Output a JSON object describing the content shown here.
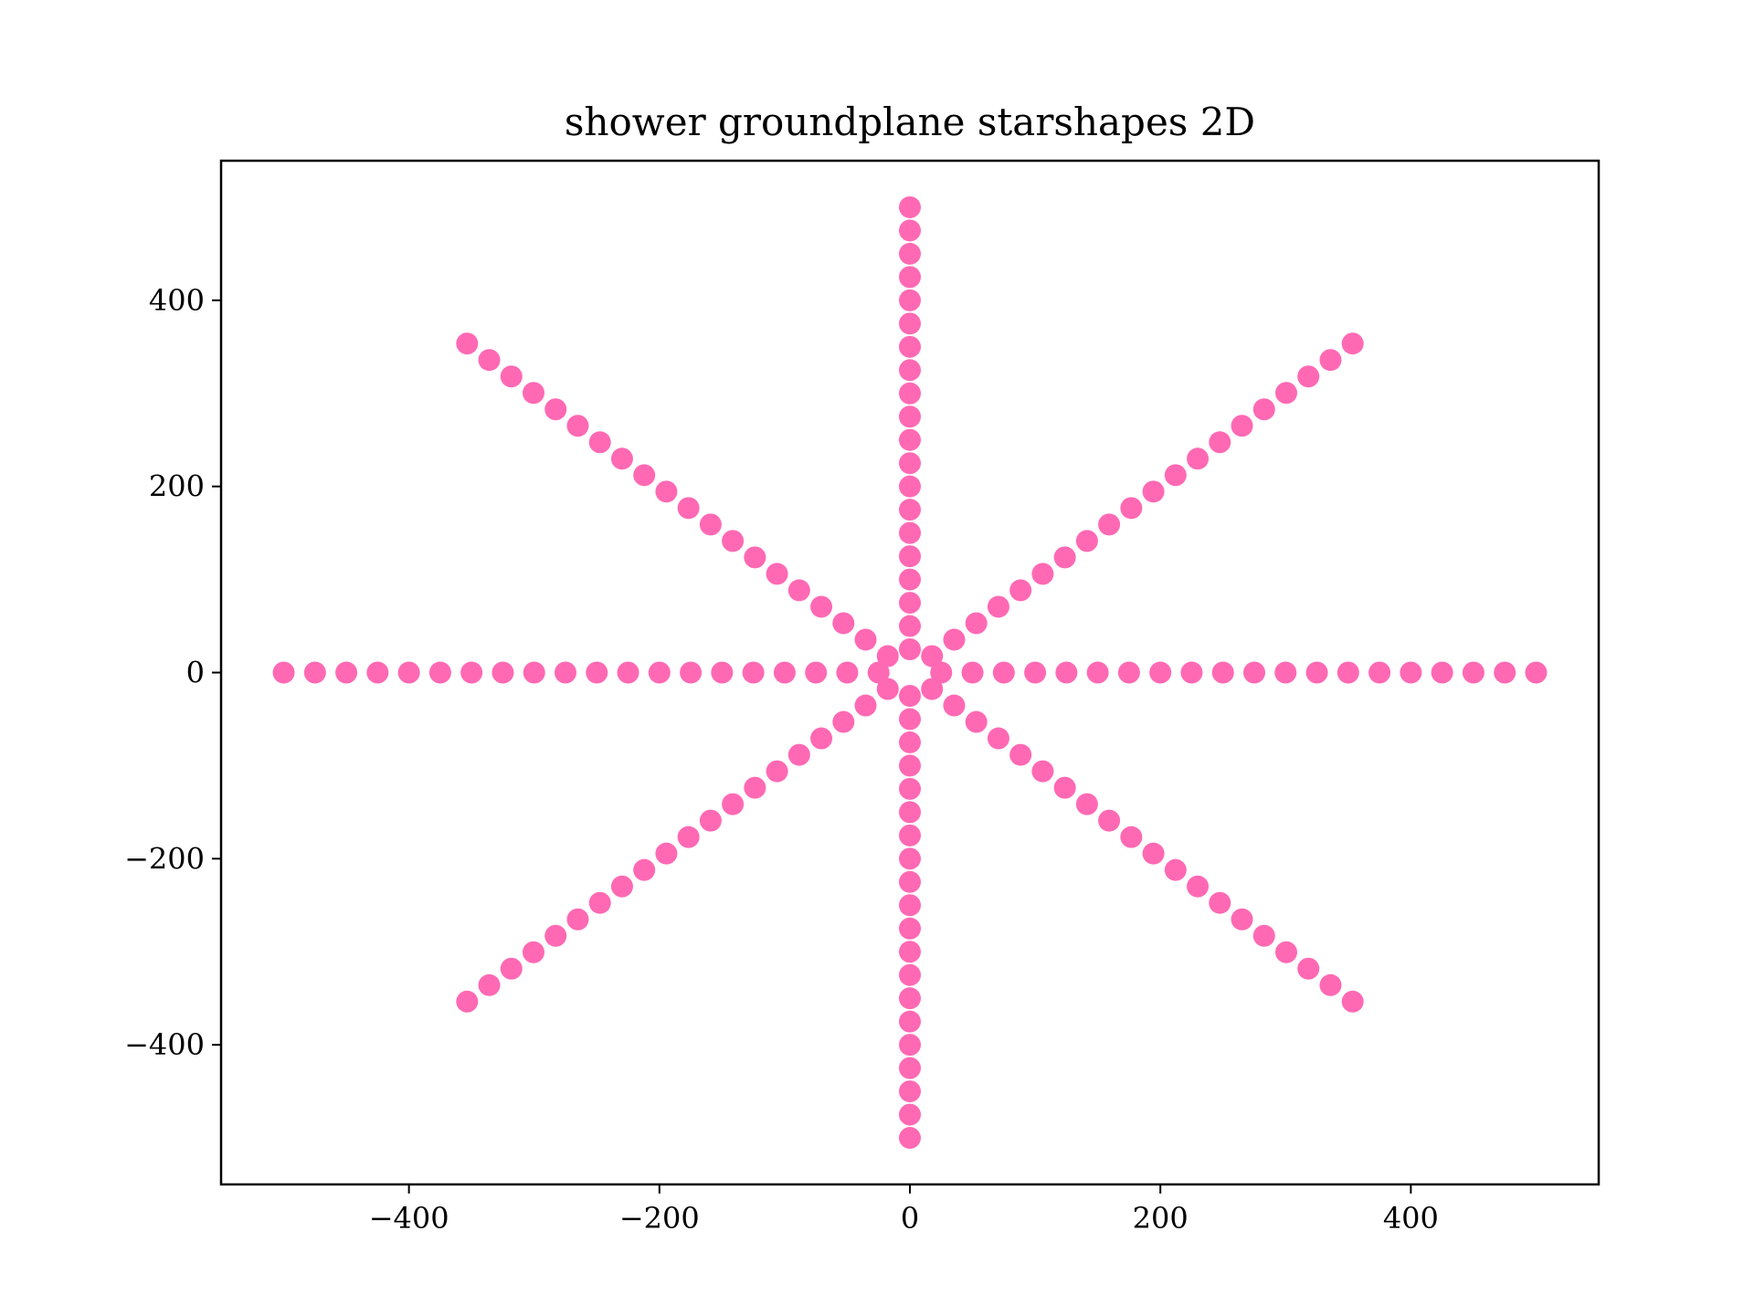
{
  "chart_data": {
    "type": "scatter",
    "title": "shower groundplane starshapes 2D",
    "xlabel": "",
    "ylabel": "",
    "xlim": [
      -550,
      550
    ],
    "ylim": [
      -550,
      550
    ],
    "xticks": [
      -400,
      -200,
      0,
      200,
      400
    ],
    "yticks": [
      -400,
      -200,
      0,
      200,
      400
    ],
    "xtick_labels": [
      "−400",
      "−200",
      "0",
      "200",
      "400"
    ],
    "ytick_labels": [
      "−400",
      "−200",
      "0",
      "200",
      "400"
    ],
    "grid": false,
    "marker_color": "#ff69b4",
    "arms": [
      {
        "angle_deg": 0,
        "radii": [
          25,
          50,
          75,
          100,
          125,
          150,
          175,
          200,
          225,
          250,
          275,
          300,
          325,
          350,
          375,
          400,
          425,
          450,
          475,
          500
        ]
      },
      {
        "angle_deg": 45,
        "radii": [
          25,
          50,
          75,
          100,
          125,
          150,
          175,
          200,
          225,
          250,
          275,
          300,
          325,
          350,
          375,
          400,
          425,
          450,
          475,
          500
        ]
      },
      {
        "angle_deg": 90,
        "radii": [
          25,
          50,
          75,
          100,
          125,
          150,
          175,
          200,
          225,
          250,
          275,
          300,
          325,
          350,
          375,
          400,
          425,
          450,
          475,
          500
        ]
      },
      {
        "angle_deg": 135,
        "radii": [
          25,
          50,
          75,
          100,
          125,
          150,
          175,
          200,
          225,
          250,
          275,
          300,
          325,
          350,
          375,
          400,
          425,
          450,
          475,
          500
        ]
      },
      {
        "angle_deg": 180,
        "radii": [
          25,
          50,
          75,
          100,
          125,
          150,
          175,
          200,
          225,
          250,
          275,
          300,
          325,
          350,
          375,
          400,
          425,
          450,
          475,
          500
        ]
      },
      {
        "angle_deg": 225,
        "radii": [
          25,
          50,
          75,
          100,
          125,
          150,
          175,
          200,
          225,
          250,
          275,
          300,
          325,
          350,
          375,
          400,
          425,
          450,
          475,
          500
        ]
      },
      {
        "angle_deg": 270,
        "radii": [
          25,
          50,
          75,
          100,
          125,
          150,
          175,
          200,
          225,
          250,
          275,
          300,
          325,
          350,
          375,
          400,
          425,
          450,
          475,
          500
        ]
      },
      {
        "angle_deg": 315,
        "radii": [
          25,
          50,
          75,
          100,
          125,
          150,
          175,
          200,
          225,
          250,
          275,
          300,
          325,
          350,
          375,
          400,
          425,
          450,
          475,
          500
        ]
      }
    ]
  }
}
